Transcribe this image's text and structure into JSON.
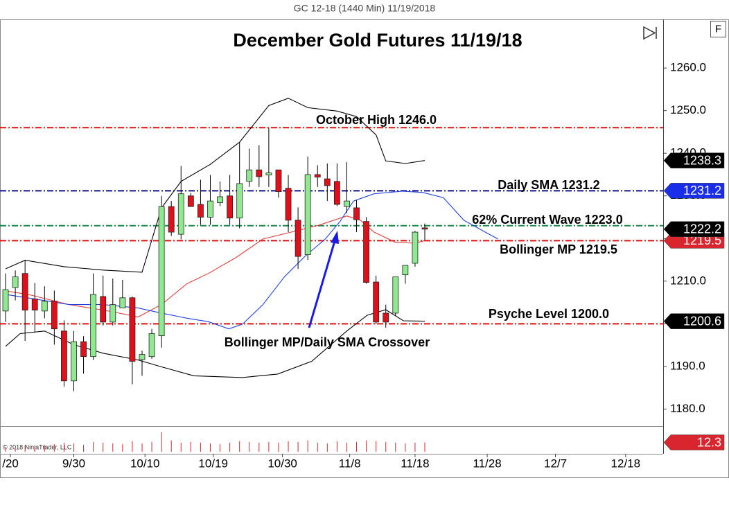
{
  "toolbar": {
    "f_button": "F"
  },
  "chart_data": {
    "type": "candlestick",
    "header": "GC 12-18 (1440 Min)  11/19/2018",
    "title": "December Gold Futures 11/19/18",
    "copyright": "© 2018 NinjaTrader, LLC",
    "xlim": [
      -0.57,
      67.45
    ],
    "xticks": [
      {
        "value": 0.5,
        "label": "/20"
      },
      {
        "value": 7,
        "label": "9/30"
      },
      {
        "value": 14.3,
        "label": "10/10"
      },
      {
        "value": 21.3,
        "label": "10/19"
      },
      {
        "value": 28.4,
        "label": "10/30"
      },
      {
        "value": 35.3,
        "label": "11/8"
      },
      {
        "value": 42,
        "label": "11/18"
      },
      {
        "value": 49.4,
        "label": "11/28"
      },
      {
        "value": 56.4,
        "label": "12/7"
      },
      {
        "value": 63.6,
        "label": "12/18"
      }
    ],
    "ylim": [
      1176,
      1271.4
    ],
    "yticks": [
      {
        "value": 1180,
        "label": "1180.0"
      },
      {
        "value": 1190,
        "label": "1190.0"
      },
      {
        "value": 1200,
        "label": "1200.0"
      },
      {
        "value": 1210,
        "label": "1210.0"
      },
      {
        "value": 1220,
        "label": "1220.0"
      },
      {
        "value": 1230,
        "label": "1230.0"
      },
      {
        "value": 1240,
        "label": "1240.0"
      },
      {
        "value": 1250,
        "label": "1250.0"
      },
      {
        "value": 1260,
        "label": "1260.0"
      }
    ],
    "candles": {
      "up_color": "#90e890",
      "down_color": "#e0101a",
      "open": [
        1203,
        1208.5,
        1211.8,
        1205.8,
        1203,
        1205.3,
        1198.3,
        1186.6,
        1195.8,
        1192.3,
        1206.4,
        1200.4,
        1203.7,
        1206.1,
        1191.6,
        1192.3,
        1197.2,
        1227.5,
        1221,
        1230,
        1228,
        1225,
        1228.4,
        1230,
        1224.8,
        1233.4,
        1236.1,
        1234.9,
        1236.1,
        1231.8,
        1224.3,
        1216.2,
        1235,
        1234,
        1233.4,
        1227.5,
        1227.2,
        1224,
        1209.8,
        1202.5,
        1202.5,
        1211.5,
        1214.2,
        1222.5
      ],
      "high": [
        1211.8,
        1212.5,
        1215,
        1209.6,
        1208.8,
        1207.8,
        1200.8,
        1198.3,
        1197.1,
        1211.8,
        1211.3,
        1210.6,
        1210.3,
        1206.4,
        1193.7,
        1198.8,
        1230,
        1228.8,
        1237,
        1230.7,
        1233.8,
        1234.9,
        1233.4,
        1234.9,
        1242.6,
        1241.1,
        1241.9,
        1245.9,
        1235.9,
        1234.9,
        1227.3,
        1239.2,
        1237.2,
        1237.6,
        1237.6,
        1237.9,
        1229,
        1225,
        1211.3,
        1204.5,
        1210.6,
        1213.7,
        1221.8,
        1223.5
      ],
      "low": [
        1200.4,
        1205.5,
        1196,
        1198,
        1201.3,
        1195.1,
        1185.3,
        1184.2,
        1188.3,
        1191.5,
        1199.6,
        1199.6,
        1205.8,
        1185.8,
        1187.8,
        1191.8,
        1194.4,
        1220.6,
        1219.8,
        1228.3,
        1223.2,
        1223.2,
        1227.6,
        1223.2,
        1222.4,
        1232.1,
        1232.1,
        1232.1,
        1229.6,
        1221.5,
        1212.9,
        1215,
        1232.1,
        1228.8,
        1227.6,
        1226,
        1221.5,
        1209.4,
        1199.9,
        1199.1,
        1201.9,
        1209.4,
        1213.4,
        1219.6
      ],
      "close": [
        1208,
        1211,
        1203.2,
        1203.2,
        1205.3,
        1198.8,
        1186.6,
        1195.8,
        1192.3,
        1206.9,
        1200.4,
        1204.5,
        1206.1,
        1191.2,
        1192.8,
        1197.7,
        1227.5,
        1221.5,
        1230.5,
        1227.5,
        1225,
        1228.8,
        1229.8,
        1224.8,
        1232.9,
        1236.1,
        1234.5,
        1235.4,
        1231,
        1224.3,
        1215.8,
        1235,
        1234.4,
        1232.4,
        1228,
        1228.8,
        1224.4,
        1209.7,
        1200.4,
        1200.4,
        1211,
        1213.7,
        1221.5,
        1222.2
      ]
    },
    "lines": [
      {
        "color": "#000000",
        "x": [
          0,
          2,
          6,
          10,
          14,
          16,
          18,
          21,
          24,
          27,
          29,
          31,
          34,
          36,
          38,
          39,
          41,
          43
        ],
        "values": [
          1212.9,
          1214.9,
          1213.4,
          1212.6,
          1212.1,
          1227.2,
          1233.4,
          1237.4,
          1242.6,
          1251.2,
          1252.9,
          1250.7,
          1249.9,
          1248.6,
          1244.3,
          1238.2,
          1237.6,
          1238.3
        ]
      },
      {
        "color": "#000000",
        "x": [
          0,
          1.5,
          4,
          7,
          10,
          13.6,
          16,
          19.3,
          24.3,
          27.9,
          31.4,
          35,
          37.1,
          39,
          40.8,
          43
        ],
        "values": [
          1194.7,
          1197.7,
          1198.3,
          1195.1,
          1193.1,
          1191.5,
          1189.9,
          1187.8,
          1187.4,
          1188.2,
          1191.2,
          1198.3,
          1202,
          1203.3,
          1200.7,
          1200.6
        ]
      },
      {
        "color": "#e03c3c",
        "x": [
          0,
          2.3,
          6.5,
          10.8,
          13.6,
          16,
          18.6,
          20.8,
          23.6,
          26.4,
          29.3,
          32.1,
          35,
          36.4,
          37.8,
          40,
          42,
          43
        ],
        "values": [
          1207.7,
          1206.9,
          1204.5,
          1202.9,
          1201.6,
          1204.5,
          1209.4,
          1211.8,
          1215.5,
          1219.9,
          1221.5,
          1223.1,
          1225.3,
          1224.3,
          1221.5,
          1219.1,
          1218.9,
          1219.5
        ]
      },
      {
        "color": "#2040e0",
        "x": [
          0,
          3,
          6.5,
          10,
          13.6,
          16,
          18.6,
          20.8,
          22.9,
          24.3,
          26.4,
          28.6,
          30.7,
          32.8,
          34.3,
          35.7,
          37.8,
          40.7,
          42.8,
          44.9,
          47,
          49.2,
          50.5
        ],
        "values": [
          1206.9,
          1205.8,
          1204.5,
          1204.5,
          1203.7,
          1202.5,
          1201.3,
          1200.5,
          1198.8,
          1199.9,
          1204.5,
          1211,
          1215.8,
          1219.9,
          1224,
          1228.8,
          1230.5,
          1231.1,
          1230.8,
          1229.6,
          1224.3,
          1221.5,
          1219.9
        ]
      }
    ],
    "levels": [
      {
        "label": "October High 1246.0",
        "value": 1246,
        "color": "#e01010"
      },
      {
        "label": "Daily SMA 1231.2",
        "value": 1231.2,
        "color": "#10108c"
      },
      {
        "label": "62% Current Wave 1223.0",
        "value": 1223,
        "color": "#1a8a4a"
      },
      {
        "label": "Bollinger MP 1219.5",
        "value": 1219.5,
        "color": "#e01010"
      },
      {
        "label": "Psyche Level 1200.0",
        "value": 1200,
        "color": "#e01010"
      }
    ],
    "annotation": "Bollinger MP/Daily SMA Crossover",
    "price_tags": [
      {
        "value": 1238.3,
        "color": "#000000"
      },
      {
        "value": 1231.2,
        "color": "#1a2ee8"
      },
      {
        "value": 1219.5,
        "color": "#d9262e"
      },
      {
        "value": 1222.2,
        "color": "#000000"
      },
      {
        "value": 1200.6,
        "color": "#000000"
      }
    ],
    "volume": {
      "color": "#d9262e",
      "ylim": [
        0,
        34
      ],
      "values": [
        6,
        6,
        8,
        7,
        9,
        10,
        12,
        11,
        9,
        13,
        12,
        11,
        10,
        14,
        11,
        13,
        26,
        15,
        12,
        13,
        12,
        11,
        10,
        12,
        14,
        13,
        12,
        13,
        12,
        14,
        13,
        15,
        12,
        11,
        14,
        12,
        13,
        15,
        14,
        13,
        12,
        11,
        12,
        12.3
      ],
      "tag": {
        "value": 12.3,
        "color": "#d9262e"
      }
    }
  }
}
